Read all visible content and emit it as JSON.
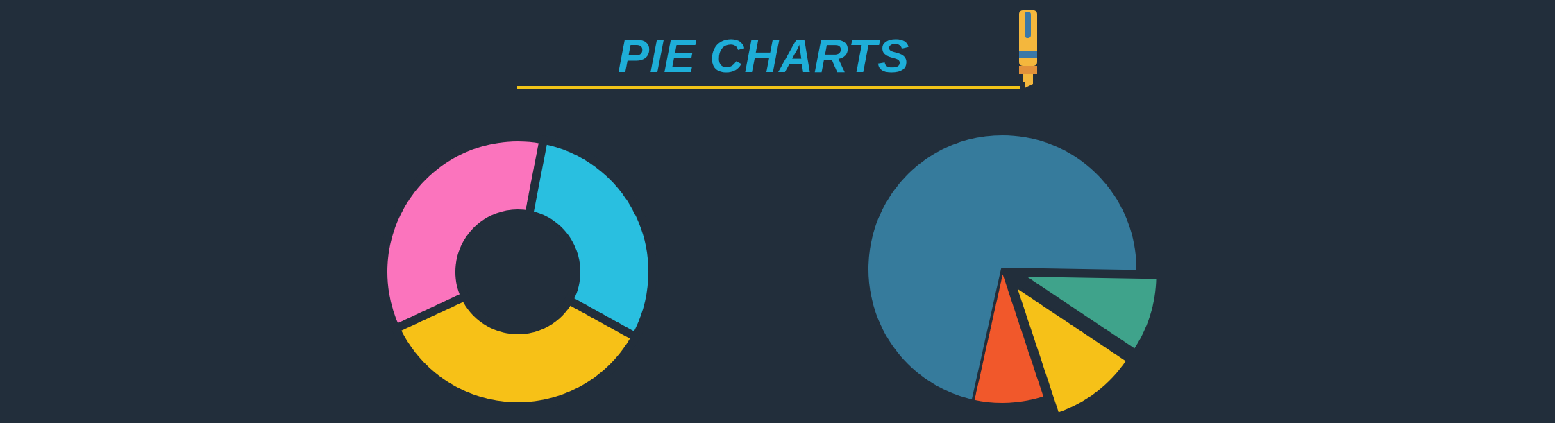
{
  "title": "PIE CHARTS",
  "colors": {
    "background": "#222e3b",
    "title": "#1eaed8",
    "underline": "#f2c418",
    "pencil_body": "#f4b73d",
    "pencil_band": "#3a78a8",
    "pencil_tip": "#e2913a"
  },
  "decorations": {
    "pencil": "highlighter-pen-icon"
  },
  "chart_data": [
    {
      "type": "pie",
      "variant": "donut",
      "title": "",
      "slices": [
        {
          "value": 35,
          "color": "#fb74bd"
        },
        {
          "value": 30,
          "color": "#29bfe0"
        },
        {
          "value": 35,
          "color": "#f7c117"
        }
      ]
    },
    {
      "type": "pie",
      "variant": "exploded",
      "title": "",
      "slices": [
        {
          "value": 75,
          "color": "#367b9c",
          "exploded": false
        },
        {
          "value": 9.5,
          "color": "#3fa38b",
          "exploded": true
        },
        {
          "value": 11,
          "color": "#f6c118",
          "exploded": true
        },
        {
          "value": 9,
          "color": "#f1582b",
          "exploded": false
        }
      ]
    }
  ]
}
